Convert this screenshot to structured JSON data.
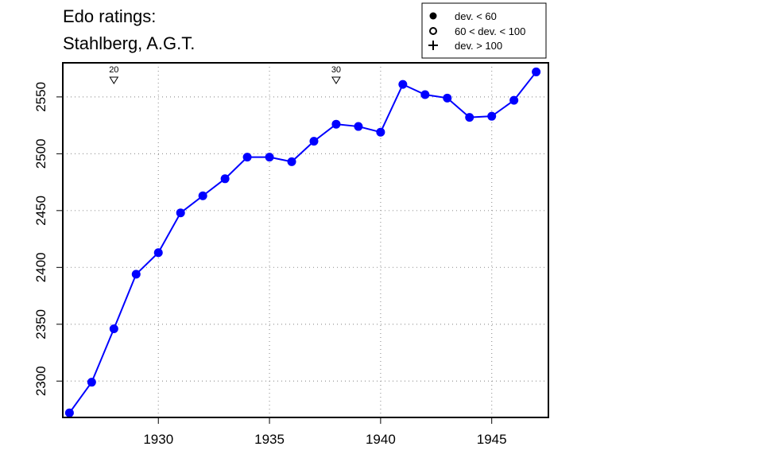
{
  "chart_data": {
    "type": "line",
    "title": [
      "Edo ratings:",
      "Stahlberg, A.G.T."
    ],
    "xlabel": "",
    "ylabel": "",
    "xlim": [
      1925.7,
      1947.55
    ],
    "ylim": [
      2268,
      2580
    ],
    "x_ticks": [
      1930,
      1935,
      1940,
      1945
    ],
    "y_ticks": [
      2300,
      2350,
      2400,
      2450,
      2500,
      2550
    ],
    "grid": true,
    "legend_position": "top-right",
    "legend": [
      {
        "symbol": "filled-circle",
        "label": "dev. < 60"
      },
      {
        "symbol": "open-circle",
        "label": "60 < dev. < 100"
      },
      {
        "symbol": "plus",
        "label": "dev. > 100"
      }
    ],
    "age_markers": [
      {
        "x": 1928,
        "label": "20"
      },
      {
        "x": 1938,
        "label": "30"
      }
    ],
    "series": [
      {
        "color": "#0000ff",
        "marker": "filled-circle",
        "x": [
          1926,
          1927,
          1928,
          1929,
          1930,
          1931,
          1932,
          1933,
          1934,
          1935,
          1936,
          1937,
          1938,
          1939,
          1940,
          1941,
          1942,
          1943,
          1944,
          1945,
          1946,
          1947
        ],
        "y": [
          2272,
          2299,
          2346,
          2394,
          2413,
          2448,
          2463,
          2478,
          2497,
          2497,
          2493,
          2511,
          2526,
          2524,
          2519,
          2561,
          2552,
          2549,
          2532,
          2533,
          2547,
          2572
        ]
      }
    ]
  }
}
